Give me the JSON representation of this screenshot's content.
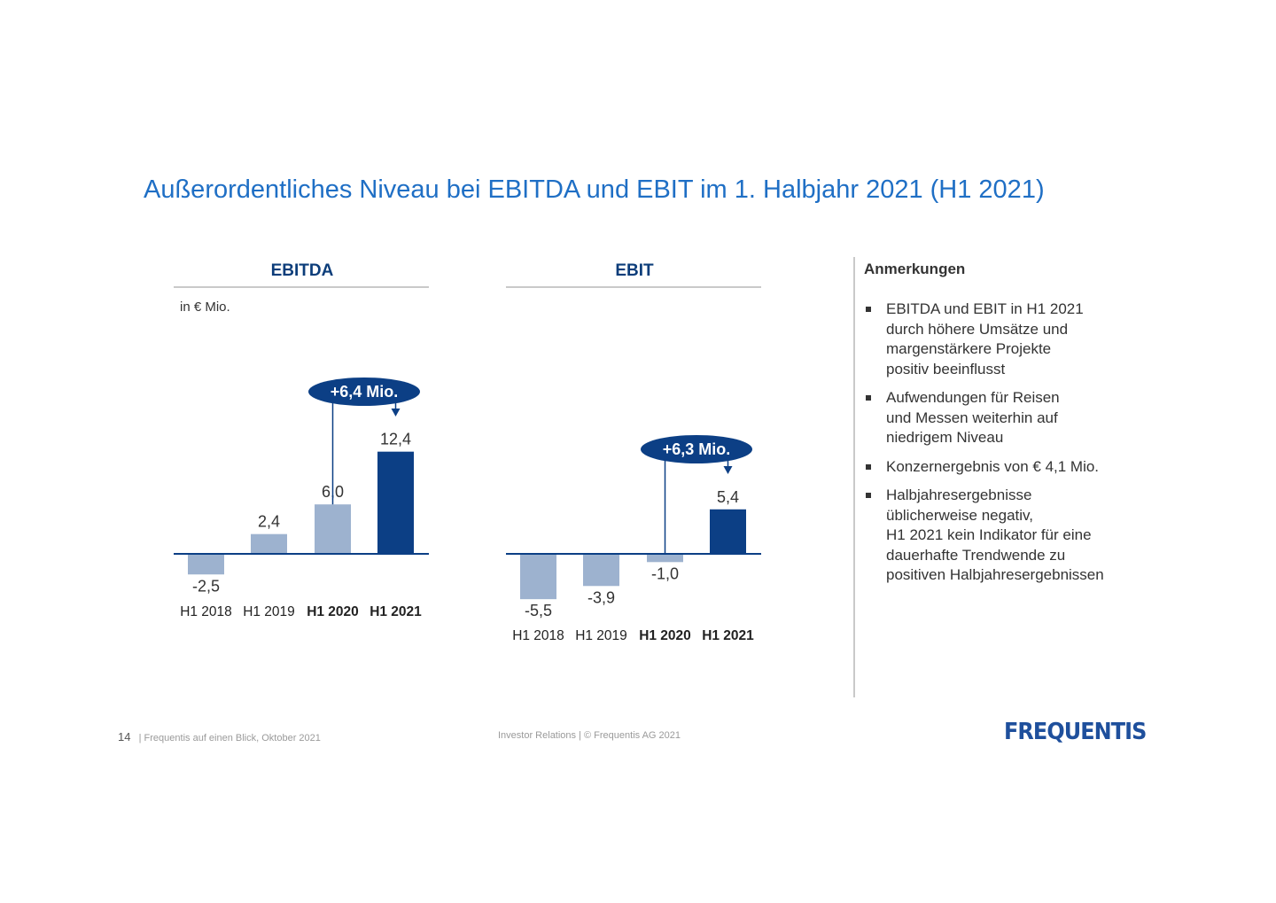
{
  "slide": {
    "title": "Außerordentliches Niveau bei EBITDA und EBIT im 1. Halbjahr 2021 (H1 2021)"
  },
  "colors": {
    "bar_light": "#9db2cf",
    "bar_dark": "#0c3f85",
    "callout": "#0c3f85"
  },
  "chart_data": [
    {
      "type": "bar",
      "title": "EBITDA",
      "unit": "in € Mio.",
      "categories": [
        "H1 2018",
        "H1 2019",
        "H1 2020",
        "H1 2021"
      ],
      "bold_categories": [
        "H1 2020",
        "H1 2021"
      ],
      "values": [
        -2.5,
        2.4,
        6.0,
        12.4
      ],
      "value_labels": [
        "-2,5",
        "2,4",
        "6,0",
        "12,4"
      ],
      "highlight_index": 3,
      "callout": "+6,4 Mio.",
      "callout_from": 2,
      "callout_to": 3
    },
    {
      "type": "bar",
      "title": "EBIT",
      "unit": "",
      "categories": [
        "H1 2018",
        "H1 2019",
        "H1 2020",
        "H1 2021"
      ],
      "bold_categories": [
        "H1 2020",
        "H1 2021"
      ],
      "values": [
        -5.5,
        -3.9,
        -1.0,
        5.4
      ],
      "value_labels": [
        "-5,5",
        "-3,9",
        "-1,0",
        "5,4"
      ],
      "highlight_index": 3,
      "callout": "+6,3 Mio.",
      "callout_from": 2,
      "callout_to": 3
    }
  ],
  "notes": {
    "title": "Anmerkungen",
    "items": [
      "EBITDA und EBIT in H1 2021\ndurch höhere Umsätze und\nmargenstärkere Projekte\npositiv beeinflusst",
      "Aufwendungen für Reisen\nund Messen weiterhin auf\nniedrigem Niveau",
      "Konzernergebnis von € 4,1 Mio.",
      "Halbjahresergebnisse\nüblicherweise negativ,\nH1 2021 kein Indikator für eine\ndauerhafte Trendwende zu\npositiven Halbjahresergebnissen"
    ]
  },
  "footer": {
    "page": "14",
    "left": "| Frequentis auf einen Blick, Oktober 2021",
    "center": "Investor Relations  |  © Frequentis AG 2021"
  },
  "logo": {
    "text": "FREQUENTIS"
  }
}
